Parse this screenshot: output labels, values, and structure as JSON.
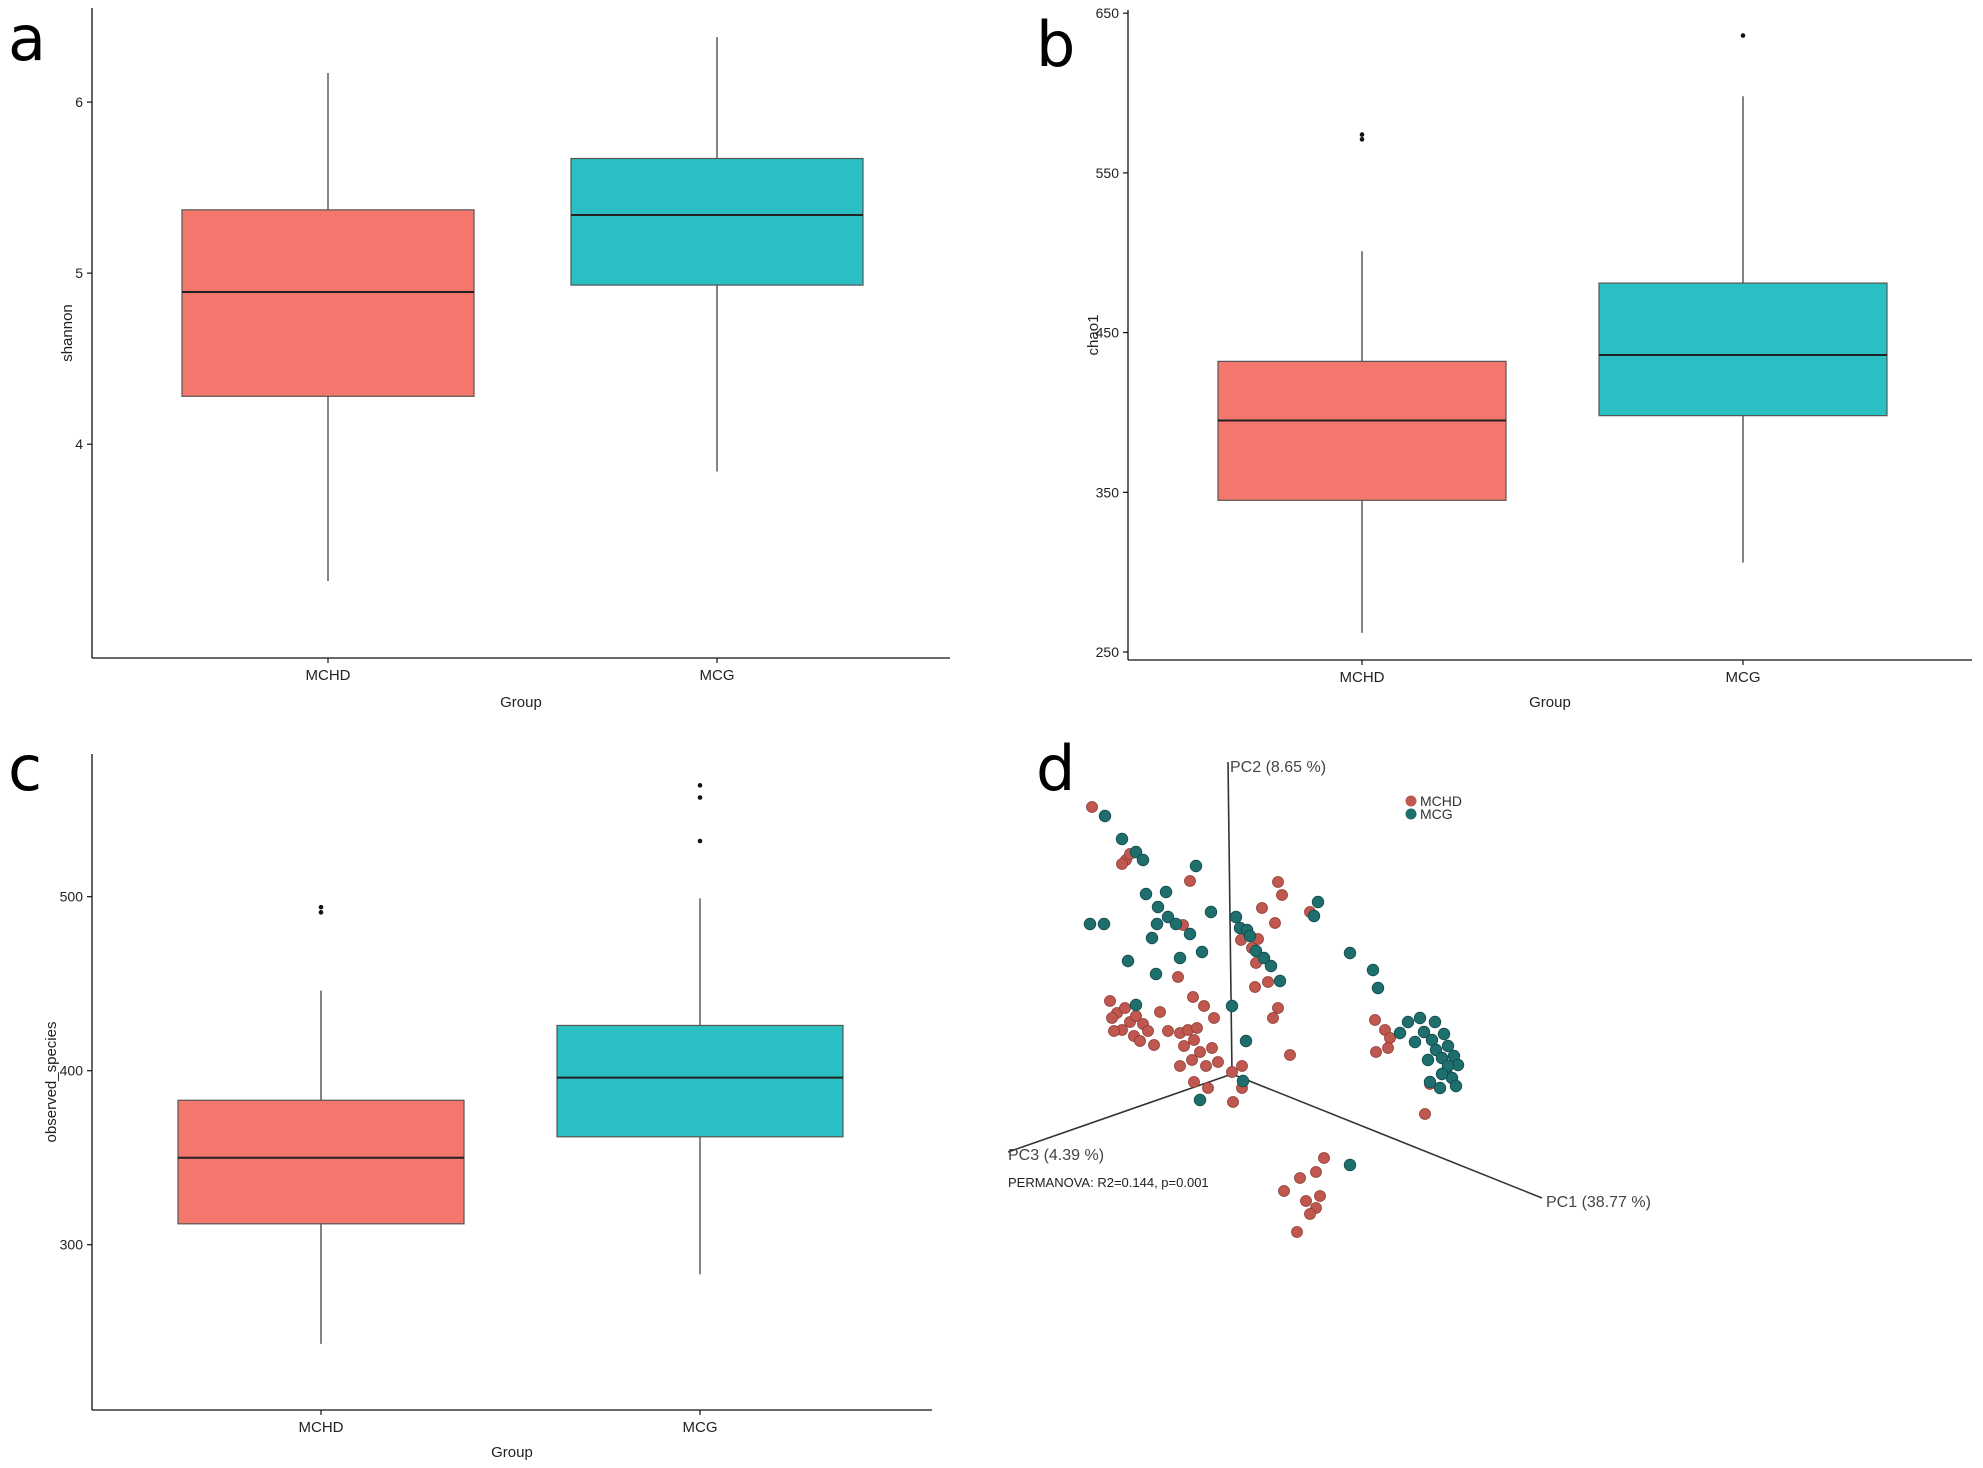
{
  "panels": {
    "a": {
      "letter": "a"
    },
    "b": {
      "letter": "b"
    },
    "c": {
      "letter": "c"
    },
    "d": {
      "letter": "d"
    }
  },
  "colors": {
    "MCHD": "#F4776E",
    "MCG": "#2ABFC2",
    "MCHD_pcoa": "#C0584F",
    "MCG_pcoa": "#1F6E6E",
    "outline": "#555555"
  },
  "chart_data": [
    {
      "panel": "a",
      "type": "box",
      "xlabel": "Group",
      "ylabel": "shannon",
      "categories": [
        "MCHD",
        "MCG"
      ],
      "yticks": [
        4,
        5,
        6
      ],
      "ylim": [
        2.75,
        6.55
      ],
      "boxes": [
        {
          "group": "MCHD",
          "min": 3.2,
          "q1": 4.28,
          "median": 4.89,
          "q3": 5.37,
          "max": 6.17,
          "outliers": []
        },
        {
          "group": "MCG",
          "min": 3.84,
          "q1": 4.93,
          "median": 5.34,
          "q3": 5.67,
          "max": 6.38,
          "outliers": []
        }
      ]
    },
    {
      "panel": "b",
      "type": "box",
      "xlabel": "Group",
      "ylabel": "chao1",
      "categories": [
        "MCHD",
        "MCG"
      ],
      "yticks": [
        250,
        350,
        450,
        550,
        650
      ],
      "ylim": [
        245,
        652
      ],
      "boxes": [
        {
          "group": "MCHD",
          "min": 262,
          "q1": 345,
          "median": 395,
          "q3": 432,
          "max": 501,
          "outliers": [
            571,
            574
          ]
        },
        {
          "group": "MCG",
          "min": 306,
          "q1": 398,
          "median": 436,
          "q3": 481,
          "max": 598,
          "outliers": [
            636
          ]
        }
      ]
    },
    {
      "panel": "c",
      "type": "box",
      "xlabel": "Group",
      "ylabel": "observed_species",
      "categories": [
        "MCHD",
        "MCG"
      ],
      "yticks": [
        300,
        400,
        500
      ],
      "ylim": [
        205,
        582
      ],
      "boxes": [
        {
          "group": "MCHD",
          "min": 243,
          "q1": 312,
          "median": 350,
          "q3": 383,
          "max": 446,
          "outliers": [
            491,
            494
          ]
        },
        {
          "group": "MCG",
          "min": 283,
          "q1": 362,
          "median": 396,
          "q3": 426,
          "max": 499,
          "outliers": [
            532,
            557,
            564
          ]
        }
      ]
    },
    {
      "panel": "d",
      "type": "scatter",
      "axes": {
        "pc1": "PC1 (38.77 %)",
        "pc2": "PC2 (8.65 %)",
        "pc3": "PC3 (4.39 %)"
      },
      "legend": [
        "MCHD",
        "MCG"
      ],
      "annotation": "PERMANOVA: R2=0.144, p=0.001"
    }
  ]
}
